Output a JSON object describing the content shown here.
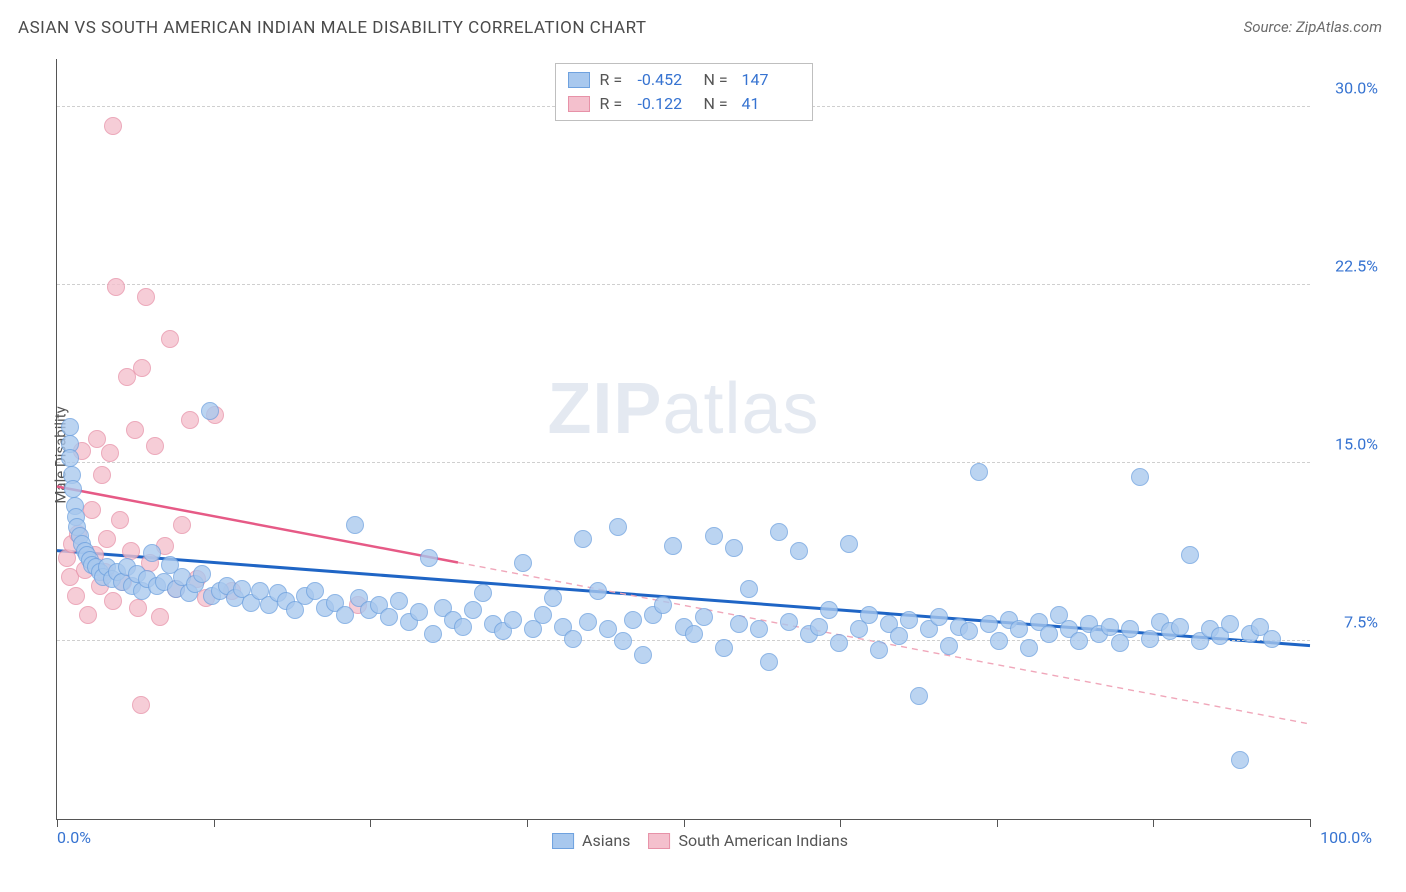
{
  "header": {
    "title": "ASIAN VS SOUTH AMERICAN INDIAN MALE DISABILITY CORRELATION CHART",
    "source": "Source: ZipAtlas.com"
  },
  "watermark": {
    "prefix": "ZIP",
    "suffix": "atlas"
  },
  "chart": {
    "type": "scatter",
    "ylabel": "Male Disability",
    "xlim": [
      0,
      100
    ],
    "ylim": [
      0,
      32
    ],
    "x_tick_positions": [
      0,
      12.5,
      25,
      37.5,
      50,
      62.5,
      75,
      87.5,
      100
    ],
    "x_limit_labels": {
      "min": "0.0%",
      "max": "100.0%"
    },
    "y_gridlines": [
      7.5,
      15.0,
      22.5,
      30.0
    ],
    "y_tick_labels": [
      "7.5%",
      "15.0%",
      "22.5%",
      "30.0%"
    ],
    "background_color": "#ffffff",
    "grid_color": "#cfcfcf",
    "axis_color": "#555555",
    "label_color": "#3673d1",
    "series": {
      "asian": {
        "label": "Asians",
        "fill": "#a8c8ee",
        "stroke": "#6fa2df",
        "opacity": 0.78,
        "marker_radius": 9,
        "R": "-0.452",
        "N": "147",
        "trend": {
          "solid_color": "#1f65c5",
          "solid_width": 3,
          "solid_from": [
            0,
            11.3
          ],
          "solid_to": [
            100,
            7.3
          ],
          "dashed": false
        },
        "points": [
          [
            1,
            16.5
          ],
          [
            1,
            15.8
          ],
          [
            1,
            15.2
          ],
          [
            1.2,
            14.5
          ],
          [
            1.3,
            13.9
          ],
          [
            1.4,
            13.2
          ],
          [
            1.5,
            12.7
          ],
          [
            1.6,
            12.3
          ],
          [
            1.8,
            11.9
          ],
          [
            2,
            11.6
          ],
          [
            2.2,
            11.3
          ],
          [
            2.4,
            11.1
          ],
          [
            2.6,
            10.9
          ],
          [
            2.8,
            10.7
          ],
          [
            3.1,
            10.6
          ],
          [
            3.4,
            10.4
          ],
          [
            3.7,
            10.2
          ],
          [
            4,
            10.6
          ],
          [
            4.4,
            10.1
          ],
          [
            4.8,
            10.4
          ],
          [
            5.2,
            10.0
          ],
          [
            5.6,
            10.6
          ],
          [
            6.0,
            9.8
          ],
          [
            6.4,
            10.3
          ],
          [
            6.8,
            9.6
          ],
          [
            7.2,
            10.1
          ],
          [
            7.6,
            11.2
          ],
          [
            8.0,
            9.8
          ],
          [
            8.5,
            10.0
          ],
          [
            9.0,
            10.7
          ],
          [
            9.5,
            9.7
          ],
          [
            10.0,
            10.2
          ],
          [
            10.5,
            9.5
          ],
          [
            11.0,
            9.9
          ],
          [
            11.6,
            10.3
          ],
          [
            12.2,
            17.2
          ],
          [
            12.4,
            9.4
          ],
          [
            13.0,
            9.6
          ],
          [
            13.6,
            9.8
          ],
          [
            14.2,
            9.3
          ],
          [
            14.8,
            9.7
          ],
          [
            15.5,
            9.1
          ],
          [
            16.2,
            9.6
          ],
          [
            16.9,
            9.0
          ],
          [
            17.6,
            9.5
          ],
          [
            18.3,
            9.2
          ],
          [
            19.0,
            8.8
          ],
          [
            19.8,
            9.4
          ],
          [
            20.6,
            9.6
          ],
          [
            21.4,
            8.9
          ],
          [
            22.2,
            9.1
          ],
          [
            23.0,
            8.6
          ],
          [
            23.8,
            12.4
          ],
          [
            24.1,
            9.3
          ],
          [
            24.9,
            8.8
          ],
          [
            25.7,
            9.0
          ],
          [
            26.5,
            8.5
          ],
          [
            27.3,
            9.2
          ],
          [
            28.1,
            8.3
          ],
          [
            28.9,
            8.7
          ],
          [
            29.7,
            11.0
          ],
          [
            30.0,
            7.8
          ],
          [
            30.8,
            8.9
          ],
          [
            31.6,
            8.4
          ],
          [
            32.4,
            8.1
          ],
          [
            33.2,
            8.8
          ],
          [
            34.0,
            9.5
          ],
          [
            34.8,
            8.2
          ],
          [
            35.6,
            7.9
          ],
          [
            36.4,
            8.4
          ],
          [
            37.2,
            10.8
          ],
          [
            38.0,
            8.0
          ],
          [
            38.8,
            8.6
          ],
          [
            39.6,
            9.3
          ],
          [
            40.4,
            8.1
          ],
          [
            41.2,
            7.6
          ],
          [
            42.0,
            11.8
          ],
          [
            42.4,
            8.3
          ],
          [
            43.2,
            9.6
          ],
          [
            44.0,
            8.0
          ],
          [
            44.8,
            12.3
          ],
          [
            45.2,
            7.5
          ],
          [
            46.0,
            8.4
          ],
          [
            46.8,
            6.9
          ],
          [
            47.6,
            8.6
          ],
          [
            48.4,
            9.0
          ],
          [
            49.2,
            11.5
          ],
          [
            50.0,
            8.1
          ],
          [
            50.8,
            7.8
          ],
          [
            51.6,
            8.5
          ],
          [
            52.4,
            11.9
          ],
          [
            53.2,
            7.2
          ],
          [
            54.0,
            11.4
          ],
          [
            54.4,
            8.2
          ],
          [
            55.2,
            9.7
          ],
          [
            56.0,
            8.0
          ],
          [
            56.8,
            6.6
          ],
          [
            57.6,
            12.1
          ],
          [
            58.4,
            8.3
          ],
          [
            59.2,
            11.3
          ],
          [
            60.0,
            7.8
          ],
          [
            60.8,
            8.1
          ],
          [
            61.6,
            8.8
          ],
          [
            62.4,
            7.4
          ],
          [
            63.2,
            11.6
          ],
          [
            64.0,
            8.0
          ],
          [
            64.8,
            8.6
          ],
          [
            65.6,
            7.1
          ],
          [
            66.4,
            8.2
          ],
          [
            67.2,
            7.7
          ],
          [
            68.0,
            8.4
          ],
          [
            68.8,
            5.2
          ],
          [
            69.6,
            8.0
          ],
          [
            70.4,
            8.5
          ],
          [
            71.2,
            7.3
          ],
          [
            72.0,
            8.1
          ],
          [
            72.8,
            7.9
          ],
          [
            73.6,
            14.6
          ],
          [
            74.4,
            8.2
          ],
          [
            75.2,
            7.5
          ],
          [
            76.0,
            8.4
          ],
          [
            76.8,
            8.0
          ],
          [
            77.6,
            7.2
          ],
          [
            78.4,
            8.3
          ],
          [
            79.2,
            7.8
          ],
          [
            80.0,
            8.6
          ],
          [
            80.8,
            8.0
          ],
          [
            81.6,
            7.5
          ],
          [
            82.4,
            8.2
          ],
          [
            83.2,
            7.8
          ],
          [
            84.0,
            8.1
          ],
          [
            84.8,
            7.4
          ],
          [
            85.6,
            8.0
          ],
          [
            86.4,
            14.4
          ],
          [
            87.2,
            7.6
          ],
          [
            88.0,
            8.3
          ],
          [
            88.8,
            7.9
          ],
          [
            89.6,
            8.1
          ],
          [
            90.4,
            11.1
          ],
          [
            91.2,
            7.5
          ],
          [
            92.0,
            8.0
          ],
          [
            92.8,
            7.7
          ],
          [
            93.6,
            8.2
          ],
          [
            94.4,
            2.5
          ],
          [
            95.2,
            7.8
          ],
          [
            96.0,
            8.1
          ],
          [
            97.0,
            7.6
          ]
        ]
      },
      "sai": {
        "label": "South American Indians",
        "fill": "#f4c0cd",
        "stroke": "#e792a8",
        "opacity": 0.78,
        "marker_radius": 9,
        "R": "-0.122",
        "N": "41",
        "trend": {
          "solid_color": "#e65a86",
          "solid_width": 2.5,
          "solid_from": [
            0,
            14.0
          ],
          "solid_to": [
            32,
            10.8
          ],
          "dashed_color": "#f0a7ba",
          "dashed_width": 1.4,
          "dashed_from": [
            32,
            10.8
          ],
          "dashed_to": [
            100,
            4.0
          ]
        },
        "points": [
          [
            0.8,
            11.0
          ],
          [
            1.0,
            10.2
          ],
          [
            1.2,
            11.6
          ],
          [
            1.5,
            9.4
          ],
          [
            1.7,
            12.0
          ],
          [
            2.0,
            15.5
          ],
          [
            2.2,
            10.5
          ],
          [
            2.5,
            8.6
          ],
          [
            2.8,
            13.0
          ],
          [
            3.0,
            11.1
          ],
          [
            3.2,
            16.0
          ],
          [
            3.4,
            9.8
          ],
          [
            3.6,
            14.5
          ],
          [
            3.8,
            10.4
          ],
          [
            4.0,
            11.8
          ],
          [
            4.2,
            15.4
          ],
          [
            4.5,
            9.2
          ],
          [
            4.7,
            22.4
          ],
          [
            5.0,
            12.6
          ],
          [
            5.3,
            10.0
          ],
          [
            5.6,
            18.6
          ],
          [
            5.9,
            11.3
          ],
          [
            4.5,
            29.2
          ],
          [
            6.2,
            16.4
          ],
          [
            6.5,
            8.9
          ],
          [
            6.8,
            19.0
          ],
          [
            6.7,
            4.8
          ],
          [
            7.1,
            22.0
          ],
          [
            7.4,
            10.8
          ],
          [
            7.8,
            15.7
          ],
          [
            8.2,
            8.5
          ],
          [
            8.6,
            11.5
          ],
          [
            9.0,
            20.2
          ],
          [
            9.5,
            9.7
          ],
          [
            10.0,
            12.4
          ],
          [
            10.6,
            16.8
          ],
          [
            11.2,
            10.1
          ],
          [
            11.9,
            9.3
          ],
          [
            12.6,
            17.0
          ],
          [
            14.0,
            9.6
          ],
          [
            24.0,
            9.0
          ]
        ]
      }
    }
  },
  "legend_top": {
    "rows": [
      {
        "swatch_fill": "#a8c8ee",
        "swatch_stroke": "#6fa2df",
        "r_label": "R =",
        "r_val": "-0.452",
        "n_label": "N =",
        "n_val": "147"
      },
      {
        "swatch_fill": "#f4c0cd",
        "swatch_stroke": "#e792a8",
        "r_label": "R =",
        "r_val": "-0.122",
        "n_label": "N =",
        "n_val": "41"
      }
    ]
  },
  "legend_bottom": {
    "items": [
      {
        "swatch_fill": "#a8c8ee",
        "swatch_stroke": "#6fa2df",
        "label": "Asians"
      },
      {
        "swatch_fill": "#f4c0cd",
        "swatch_stroke": "#e792a8",
        "label": "South American Indians"
      }
    ]
  }
}
